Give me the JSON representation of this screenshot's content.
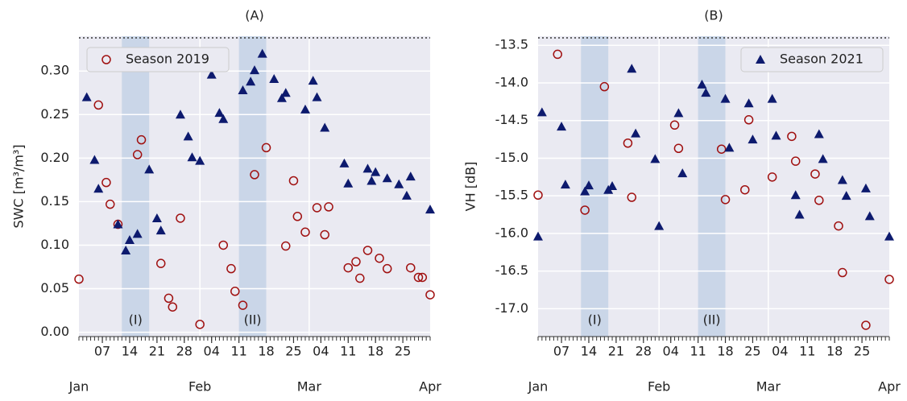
{
  "chart_data": [
    {
      "type": "scatter",
      "title": "(A)",
      "ylabel": "SWC [m³/m³]",
      "xlim": [
        "01-01",
        "04-01"
      ],
      "xticks": [
        {
          "value": "01-07",
          "label": "07"
        },
        {
          "value": "01-14",
          "label": "14"
        },
        {
          "value": "01-21",
          "label": "21"
        },
        {
          "value": "01-28",
          "label": "28"
        },
        {
          "value": "02-04",
          "label": "04"
        },
        {
          "value": "02-11",
          "label": "11"
        },
        {
          "value": "02-18",
          "label": "18"
        },
        {
          "value": "02-25",
          "label": "25"
        },
        {
          "value": "03-04",
          "label": "04"
        },
        {
          "value": "03-11",
          "label": "11"
        },
        {
          "value": "03-18",
          "label": "18"
        },
        {
          "value": "03-25",
          "label": "25"
        }
      ],
      "month_ticks": [
        {
          "value": "01-01",
          "label": "Jan"
        },
        {
          "value": "02-01",
          "label": "Feb"
        },
        {
          "value": "03-01",
          "label": "Mar"
        },
        {
          "value": "04-01",
          "label": "Apr"
        }
      ],
      "ylim": [
        -0.005,
        0.34
      ],
      "yticks": [
        {
          "value": 0,
          "label": "0.00"
        },
        {
          "value": 0.05,
          "label": "0.05"
        },
        {
          "value": 0.1,
          "label": "0.10"
        },
        {
          "value": 0.15,
          "label": "0.15"
        },
        {
          "value": 0.2,
          "label": "0.20"
        },
        {
          "value": 0.25,
          "label": "0.25"
        },
        {
          "value": 0.3,
          "label": "0.30"
        }
      ],
      "grid": true,
      "legend_loc": "upper-left",
      "spans": [
        {
          "start": "01-12",
          "end": "01-19",
          "label": "(I)"
        },
        {
          "start": "02-11",
          "end": "02-18",
          "label": "(II)"
        }
      ],
      "series": [
        {
          "name": "Season 2019",
          "color": "#a01010",
          "marker": "circle",
          "x": [
            "01-01",
            "01-06",
            "01-08",
            "01-09",
            "01-11",
            "01-16",
            "01-17",
            "01-22",
            "01-24",
            "01-25",
            "01-27",
            "02-01",
            "02-07",
            "02-09",
            "02-10",
            "02-12",
            "02-15",
            "02-18",
            "02-23",
            "02-25",
            "02-26",
            "02-28",
            "03-03",
            "03-05",
            "03-06",
            "03-11",
            "03-13",
            "03-14",
            "03-16",
            "03-19",
            "03-21",
            "03-27",
            "03-29",
            "03-30",
            "04-01"
          ],
          "values": [
            0.061,
            0.261,
            0.172,
            0.147,
            0.124,
            0.204,
            0.221,
            0.079,
            0.039,
            0.029,
            0.131,
            0.009,
            0.1,
            0.073,
            0.047,
            0.031,
            0.181,
            0.212,
            0.099,
            0.174,
            0.133,
            0.115,
            0.143,
            0.112,
            0.144,
            0.074,
            0.081,
            0.062,
            0.094,
            0.085,
            0.073,
            0.074,
            0.063,
            0.063,
            0.043
          ]
        },
        {
          "name": "Season 2021",
          "color": "#0d1a6e",
          "marker": "triangle",
          "x": [
            "01-03",
            "01-05",
            "01-06",
            "01-11",
            "01-13",
            "01-14",
            "01-16",
            "01-19",
            "01-21",
            "01-22",
            "01-27",
            "01-29",
            "01-30",
            "02-01",
            "02-04",
            "02-06",
            "02-07",
            "02-12",
            "02-14",
            "02-15",
            "02-17",
            "02-20",
            "02-22",
            "02-23",
            "02-28",
            "03-02",
            "03-03",
            "03-05",
            "03-10",
            "03-11",
            "03-16",
            "03-17",
            "03-18",
            "03-21",
            "03-24",
            "03-26",
            "03-27",
            "04-01"
          ],
          "values": [
            0.27,
            0.198,
            0.165,
            0.124,
            0.094,
            0.106,
            0.113,
            0.187,
            0.131,
            0.117,
            0.25,
            0.225,
            0.201,
            0.197,
            0.296,
            0.252,
            0.245,
            0.278,
            0.288,
            0.301,
            0.32,
            0.291,
            0.269,
            0.275,
            0.256,
            0.289,
            0.27,
            0.235,
            0.194,
            0.171,
            0.188,
            0.174,
            0.184,
            0.177,
            0.17,
            0.157,
            0.179,
            0.141
          ]
        }
      ]
    },
    {
      "type": "scatter",
      "title": "(B)",
      "ylabel": "VH [dB]",
      "xlim": [
        "01-01",
        "04-01"
      ],
      "xticks": [
        {
          "value": "01-07",
          "label": "07"
        },
        {
          "value": "01-14",
          "label": "14"
        },
        {
          "value": "01-21",
          "label": "21"
        },
        {
          "value": "01-28",
          "label": "28"
        },
        {
          "value": "02-04",
          "label": "04"
        },
        {
          "value": "02-11",
          "label": "11"
        },
        {
          "value": "02-18",
          "label": "18"
        },
        {
          "value": "02-25",
          "label": "25"
        },
        {
          "value": "03-04",
          "label": "04"
        },
        {
          "value": "03-11",
          "label": "11"
        },
        {
          "value": "03-18",
          "label": "18"
        },
        {
          "value": "03-25",
          "label": "25"
        }
      ],
      "month_ticks": [
        {
          "value": "01-01",
          "label": "Jan"
        },
        {
          "value": "02-01",
          "label": "Feb"
        },
        {
          "value": "03-01",
          "label": "Mar"
        },
        {
          "value": "04-01",
          "label": "Apr"
        }
      ],
      "ylim": [
        -17.37,
        -13.38
      ],
      "yticks": [
        -13.5,
        {
          "value": -14,
          "label": "-14.0"
        },
        -14.5,
        {
          "value": -15,
          "label": "-15.0"
        },
        -15.5,
        {
          "value": -16,
          "label": "-16.0"
        },
        -16.5,
        {
          "value": -17,
          "label": "-17.0"
        }
      ],
      "grid": true,
      "legend_loc": "upper-right",
      "spans": [
        {
          "start": "01-12",
          "end": "01-19",
          "label": "(I)"
        },
        {
          "start": "02-11",
          "end": "02-18",
          "label": "(II)"
        }
      ],
      "series": [
        {
          "name": "Season 2019",
          "color": "#a01010",
          "marker": "circle",
          "x": [
            "01-01",
            "01-06",
            "01-13",
            "01-18",
            "01-24",
            "01-25",
            "02-05",
            "02-06",
            "02-17",
            "02-18",
            "02-23",
            "02-24",
            "03-02",
            "03-07",
            "03-08",
            "03-13",
            "03-14",
            "03-19",
            "03-20",
            "03-26",
            "04-01"
          ],
          "values": [
            -15.49,
            -13.62,
            -15.69,
            -14.05,
            -14.8,
            -15.52,
            -14.56,
            -14.87,
            -14.88,
            -15.55,
            -15.42,
            -14.49,
            -15.25,
            -14.71,
            -15.04,
            -15.21,
            -15.56,
            -15.9,
            -16.52,
            -17.22,
            -16.61
          ]
        },
        {
          "name": "Season 2021",
          "color": "#0d1a6e",
          "marker": "triangle",
          "x": [
            "01-01",
            "01-02",
            "01-07",
            "01-08",
            "01-13",
            "01-14",
            "01-19",
            "01-20",
            "01-25",
            "01-26",
            "01-31",
            "02-01",
            "02-06",
            "02-07",
            "02-12",
            "02-13",
            "02-18",
            "02-19",
            "02-24",
            "02-25",
            "03-02",
            "03-03",
            "03-08",
            "03-09",
            "03-14",
            "03-15",
            "03-20",
            "03-21",
            "03-26",
            "03-27",
            "04-01"
          ],
          "values": [
            -16.04,
            -14.39,
            -14.58,
            -15.35,
            -15.44,
            -15.36,
            -15.42,
            -15.37,
            -13.81,
            -14.67,
            -15.01,
            -15.9,
            -14.4,
            -15.2,
            -14.02,
            -14.13,
            -14.21,
            -14.86,
            -14.27,
            -14.75,
            -14.21,
            -14.7,
            -15.49,
            -15.75,
            -14.68,
            -15.01,
            -15.29,
            -15.5,
            -15.4,
            -15.77,
            -16.04
          ]
        }
      ]
    }
  ]
}
